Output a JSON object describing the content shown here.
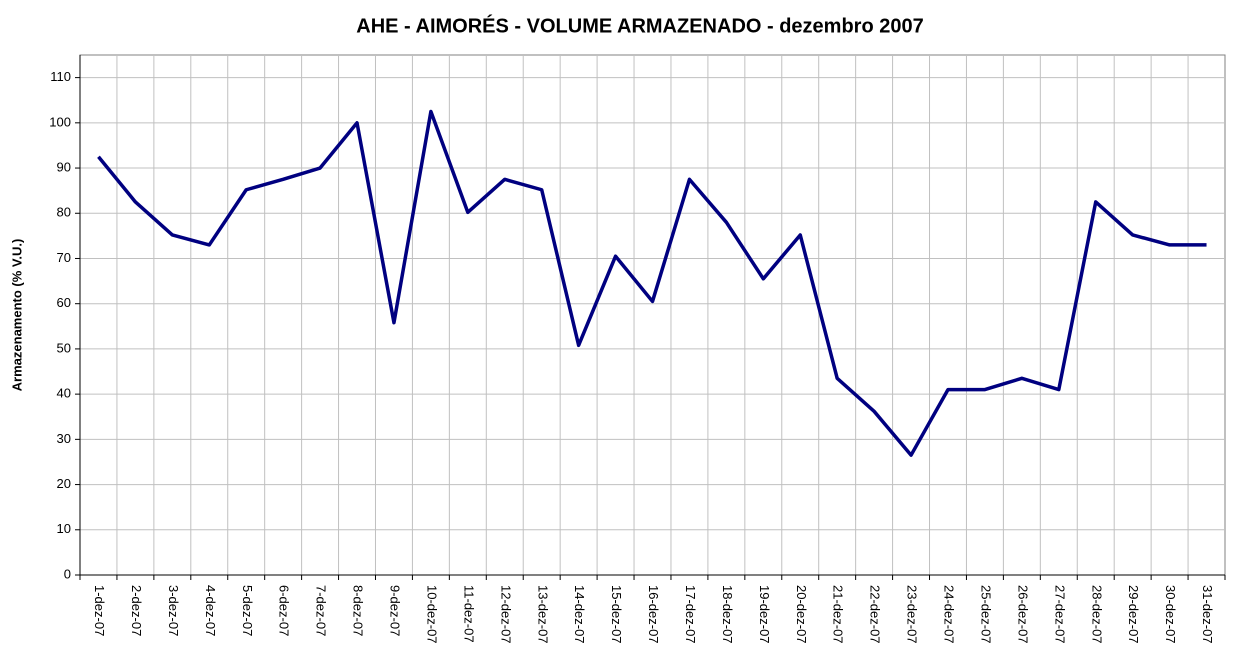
{
  "chart_data": {
    "type": "line",
    "title": "AHE - AIMORÉS - VOLUME ARMAZENADO - dezembro 2007",
    "y_label": "Armazenamento (% V.U.)",
    "categories": [
      "1-dez-07",
      "2-dez-07",
      "3-dez-07",
      "4-dez-07",
      "5-dez-07",
      "6-dez-07",
      "7-dez-07",
      "8-dez-07",
      "9-dez-07",
      "10-dez-07",
      "11-dez-07",
      "12-dez-07",
      "13-dez-07",
      "14-dez-07",
      "15-dez-07",
      "16-dez-07",
      "17-dez-07",
      "18-dez-07",
      "19-dez-07",
      "20-dez-07",
      "21-dez-07",
      "22-dez-07",
      "23-dez-07",
      "24-dez-07",
      "25-dez-07",
      "26-dez-07",
      "27-dez-07",
      "28-dez-07",
      "29-dez-07",
      "30-dez-07",
      "31-dez-07"
    ],
    "series": [
      {
        "name": "Armazenamento",
        "color": "#000080",
        "values": [
          92.5,
          82.5,
          75.2,
          73,
          85.2,
          87.5,
          90,
          100,
          55.8,
          102.5,
          80.2,
          87.5,
          85.2,
          50.8,
          70.5,
          60.5,
          87.5,
          78,
          65.5,
          75.2,
          43.5,
          36.2,
          26.5,
          41,
          41,
          43.5,
          41,
          82.5,
          75.2,
          73,
          73
        ]
      }
    ],
    "ylim": [
      0,
      115
    ],
    "yticks": [
      0,
      10,
      20,
      30,
      40,
      50,
      60,
      70,
      80,
      90,
      100,
      110
    ],
    "grid": true
  }
}
